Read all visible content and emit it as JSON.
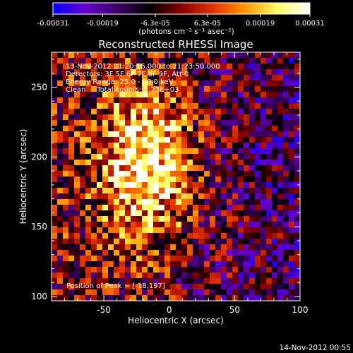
{
  "chart_data": {
    "type": "heatmap",
    "title": "Reconstructed RHESSI Image",
    "xlabel": "Heliocentric X (arcsec)",
    "ylabel": "Heliocentric Y (arcsec)",
    "xlim": [
      -90,
      100
    ],
    "ylim": [
      97,
      275
    ],
    "x_ticks": [
      -50,
      0,
      50,
      100
    ],
    "y_ticks": [
      100,
      150,
      200,
      250
    ],
    "colorbar": {
      "min": -0.00031,
      "max": 0.00031,
      "tick_values": [
        -0.00031,
        -0.00019,
        -6.3e-05,
        6.3e-05,
        0.00019,
        0.00031
      ],
      "tick_labels": [
        "-0.00031",
        "-0.00019",
        "-6.3e-05",
        "6.3e-05",
        "0.00019",
        "0.00031"
      ],
      "unit_label": "(photons cm⁻² s⁻¹ asec⁻²)",
      "colormap": [
        "#0000ff",
        "#6600cc",
        "#3d0066",
        "#000000",
        "#880000",
        "#e63300",
        "#ff9900",
        "#ffff66",
        "#ffffff"
      ]
    },
    "annotations": [
      "13-Nov-2012 21:20:16.000 to 21:23:50.000",
      "Detectors: 3F 5F 6F 7F 8F 9F, Att 0",
      "Energy Range: 25.0 - 50.0 keV",
      "Clean     Total counts: 5.23E+03"
    ],
    "peak": {
      "label": "Position of Peak = [-18,197]",
      "x": -18,
      "y": 197
    },
    "footer": "14-Nov-2012 00:55"
  }
}
